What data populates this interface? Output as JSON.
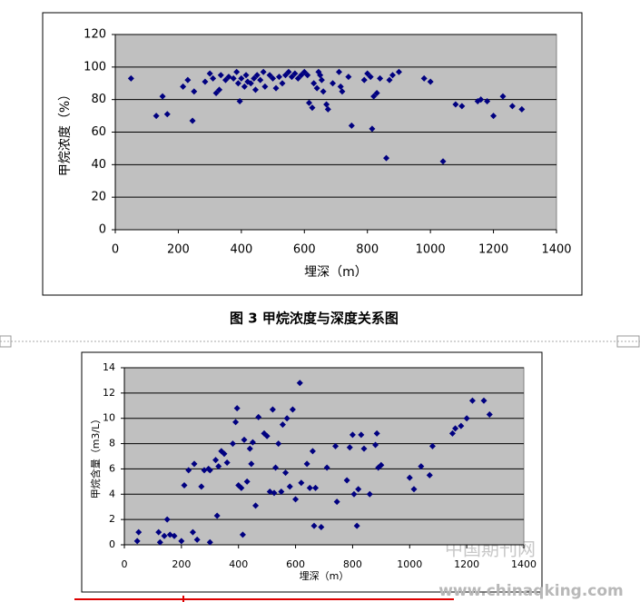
{
  "chart_data": [
    {
      "type": "scatter",
      "xlabel": "埋深（m）",
      "ylabel": "甲烷浓度（%）",
      "color": "#000080",
      "grid": true,
      "xlim": [
        0,
        1400
      ],
      "ylim": [
        0,
        120
      ],
      "xticks": [
        0,
        200,
        400,
        600,
        800,
        1000,
        1200,
        1400
      ],
      "yticks": [
        0,
        20,
        40,
        60,
        80,
        100,
        120
      ],
      "x": [
        50,
        130,
        150,
        165,
        215,
        230,
        245,
        250,
        285,
        300,
        310,
        320,
        330,
        335,
        350,
        360,
        375,
        385,
        390,
        395,
        400,
        410,
        415,
        420,
        430,
        440,
        445,
        450,
        460,
        470,
        475,
        490,
        500,
        510,
        520,
        530,
        540,
        550,
        560,
        570,
        580,
        590,
        600,
        610,
        615,
        625,
        630,
        640,
        645,
        650,
        655,
        660,
        670,
        675,
        690,
        710,
        715,
        720,
        740,
        750,
        790,
        800,
        810,
        815,
        820,
        830,
        840,
        860,
        870,
        880,
        900,
        980,
        1000,
        1040,
        1080,
        1100,
        1150,
        1160,
        1180,
        1200,
        1230,
        1260,
        1290
      ],
      "values": [
        93,
        70,
        82,
        71,
        88,
        92,
        67,
        85,
        91,
        96,
        93,
        84,
        86,
        95,
        92,
        94,
        93,
        97,
        90,
        79,
        93,
        88,
        95,
        91,
        90,
        93,
        86,
        95,
        92,
        97,
        88,
        95,
        93,
        87,
        94,
        90,
        95,
        97,
        94,
        96,
        93,
        95,
        97,
        95,
        78,
        75,
        90,
        87,
        97,
        95,
        92,
        85,
        77,
        74,
        90,
        97,
        88,
        85,
        94,
        64,
        92,
        96,
        94,
        62,
        82,
        84,
        93,
        44,
        92,
        95,
        97,
        93,
        91,
        42,
        77,
        76,
        79,
        80,
        79,
        70,
        82,
        76,
        74
      ]
    },
    {
      "type": "scatter",
      "xlabel": "埋深（m）",
      "ylabel": "甲烷含量（m3/L）",
      "color": "#000080",
      "grid": true,
      "xlim": [
        0,
        1400
      ],
      "ylim": [
        0,
        14
      ],
      "xticks": [
        0,
        200,
        400,
        600,
        800,
        1000,
        1200,
        1400
      ],
      "yticks": [
        0,
        2,
        4,
        6,
        8,
        10,
        12,
        14
      ],
      "x": [
        45,
        50,
        120,
        125,
        140,
        150,
        160,
        175,
        200,
        210,
        225,
        240,
        245,
        255,
        270,
        280,
        295,
        300,
        300,
        320,
        325,
        330,
        340,
        350,
        360,
        380,
        390,
        395,
        400,
        410,
        415,
        420,
        430,
        440,
        445,
        450,
        460,
        470,
        490,
        500,
        510,
        520,
        525,
        530,
        540,
        550,
        555,
        565,
        570,
        580,
        590,
        600,
        615,
        620,
        640,
        650,
        660,
        665,
        670,
        690,
        710,
        740,
        745,
        780,
        790,
        800,
        805,
        815,
        820,
        830,
        840,
        860,
        880,
        885,
        890,
        900,
        1000,
        1015,
        1040,
        1070,
        1080,
        1150,
        1160,
        1180,
        1200,
        1220,
        1260,
        1280
      ],
      "values": [
        0.3,
        1.0,
        1.0,
        0.2,
        0.7,
        2.0,
        0.8,
        0.7,
        0.3,
        4.7,
        5.9,
        1.0,
        6.4,
        0.4,
        4.6,
        5.9,
        6.0,
        5.9,
        0.2,
        6.7,
        2.3,
        6.2,
        7.4,
        7.2,
        6.5,
        8.0,
        9.7,
        10.8,
        4.7,
        4.5,
        0.8,
        8.3,
        5.0,
        7.6,
        6.4,
        8.1,
        3.1,
        10.1,
        8.8,
        8.6,
        4.2,
        10.7,
        4.1,
        6.1,
        8.0,
        4.2,
        9.5,
        5.7,
        10.0,
        4.6,
        10.7,
        3.6,
        12.8,
        4.9,
        6.4,
        4.5,
        7.4,
        1.5,
        4.5,
        1.4,
        6.1,
        7.8,
        3.4,
        5.1,
        7.7,
        8.7,
        4.0,
        1.5,
        4.4,
        8.7,
        7.6,
        4.0,
        7.9,
        8.8,
        6.1,
        6.3,
        5.3,
        4.4,
        6.2,
        5.5,
        7.8,
        8.8,
        9.2,
        9.4,
        10.0,
        11.4,
        11.4,
        10.3
      ]
    }
  ],
  "caption": "图 3  甲烷浓度与深度关系图",
  "watermark": [
    "中国期刊网",
    "www.chinaqking.com"
  ]
}
